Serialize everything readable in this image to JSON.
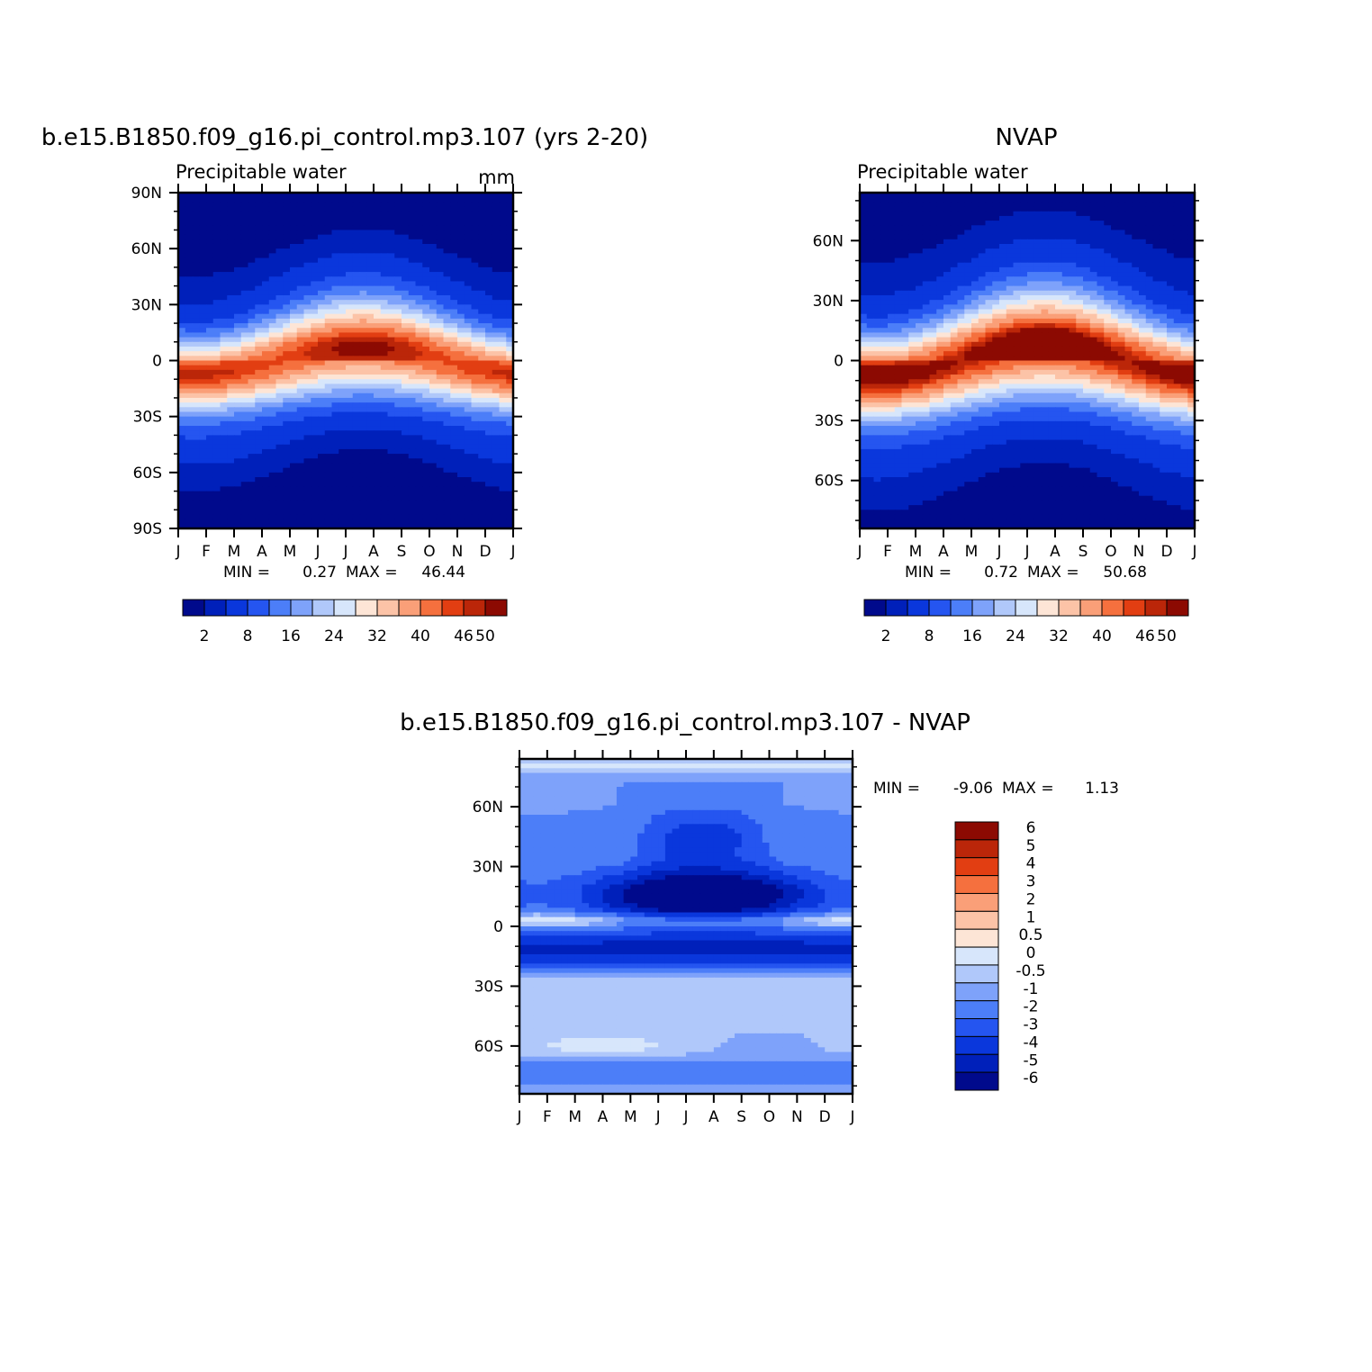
{
  "colors": {
    "seq_palette": [
      "#000a8c",
      "#0020ba",
      "#0a37dc",
      "#2555f0",
      "#4c7ef8",
      "#7ea2fa",
      "#b0c8fa",
      "#d7e6fb",
      "#fde5d6",
      "#fcc3a7",
      "#fa9f78",
      "#f5703e",
      "#e23e12",
      "#bb2609",
      "#8c0a02"
    ],
    "diff_palette": [
      "#000a8c",
      "#0020ba",
      "#0a37dc",
      "#2555f0",
      "#4c7ef8",
      "#7ea2fa",
      "#b0c8fa",
      "#d7e6fb",
      "#fde5d6",
      "#fcc3a7",
      "#fa9f78",
      "#f5703e",
      "#e23e12",
      "#bb2609",
      "#8c0a02"
    ]
  },
  "chart_data": [
    {
      "type": "heatmap",
      "title": "b.e15.B1850.f09_g16.pi_control.mp3.107 (yrs 2-20)",
      "subtitle_left": "Precipitable water",
      "subtitle_right": "mm",
      "months": [
        "J",
        "F",
        "M",
        "A",
        "M",
        "J",
        "J",
        "A",
        "S",
        "O",
        "N",
        "D",
        "J"
      ],
      "yticks": [
        "90N",
        "60N",
        "30N",
        "0",
        "30S",
        "60S",
        "90S"
      ],
      "ylim": [
        -90,
        90
      ],
      "stats": {
        "min_label": "MIN =",
        "min": "0.27",
        "max_label": "MAX =",
        "max": "46.44"
      },
      "colorbar_labels": [
        "2",
        "8",
        "16",
        "24",
        "32",
        "40",
        "46",
        "50"
      ],
      "colorbar_levels": [
        0,
        2,
        4,
        8,
        12,
        16,
        20,
        24,
        28,
        32,
        36,
        40,
        44,
        46,
        48,
        50
      ],
      "field": {
        "base_peak": 44,
        "base_width": 21,
        "itcz_shift": 7,
        "floor": 0.3,
        "peak_boost": 3
      }
    },
    {
      "type": "heatmap",
      "title": "NVAP",
      "subtitle_left": "Precipitable water",
      "months": [
        "J",
        "F",
        "M",
        "A",
        "M",
        "J",
        "J",
        "A",
        "S",
        "O",
        "N",
        "D",
        "J"
      ],
      "yticks": [
        "60N",
        "30N",
        "0",
        "30S",
        "60S"
      ],
      "ylim": [
        -84,
        84
      ],
      "stats": {
        "min_label": "MIN =",
        "min": "0.72",
        "max_label": "MAX =",
        "max": "50.68"
      },
      "colorbar_labels": [
        "2",
        "8",
        "16",
        "24",
        "32",
        "40",
        "46",
        "50"
      ],
      "colorbar_levels": [
        0,
        2,
        4,
        8,
        12,
        16,
        20,
        24,
        28,
        32,
        36,
        40,
        44,
        46,
        48,
        50
      ],
      "field": {
        "base_peak": 48,
        "base_width": 22,
        "itcz_shift": 8,
        "floor": 0.7,
        "peak_boost": 4
      }
    },
    {
      "type": "heatmap",
      "title": "b.e15.B1850.f09_g16.pi_control.mp3.107 - NVAP",
      "months": [
        "J",
        "F",
        "M",
        "A",
        "M",
        "J",
        "J",
        "A",
        "S",
        "O",
        "N",
        "D",
        "J"
      ],
      "yticks": [
        "60N",
        "30N",
        "0",
        "30S",
        "60S"
      ],
      "ylim": [
        -84,
        84
      ],
      "stats": {
        "min_label": "MIN =",
        "min": "-9.06",
        "max_label": "MAX =",
        "max": "1.13"
      },
      "colorbar_labels": [
        "6",
        "5",
        "4",
        "3",
        "2",
        "1",
        "0.5",
        "0",
        "-0.5",
        "-1",
        "-2",
        "-3",
        "-4",
        "-5",
        "-6"
      ],
      "colorbar_levels": [
        -6,
        -5,
        -4,
        -3,
        -2,
        -1,
        -0.5,
        0,
        0.5,
        1,
        2,
        3,
        4,
        5,
        6
      ]
    }
  ]
}
